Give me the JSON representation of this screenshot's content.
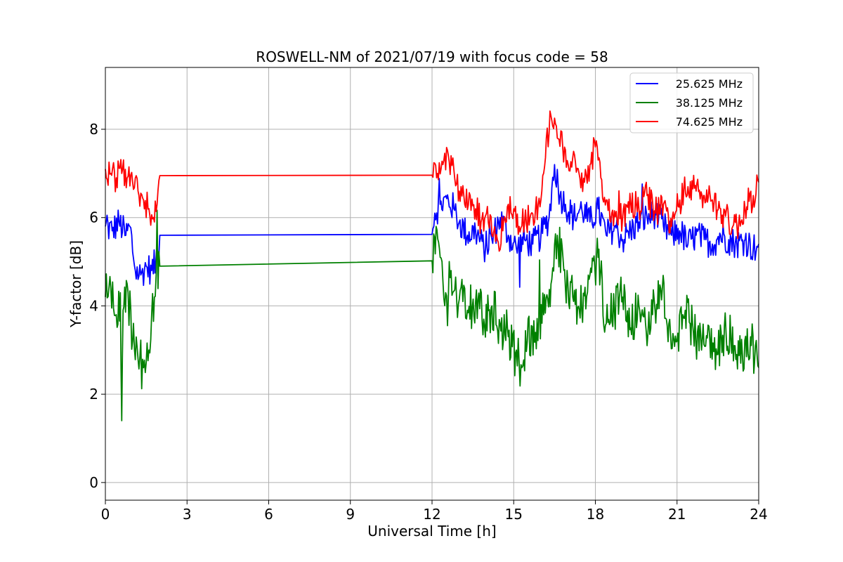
{
  "chart_data": {
    "type": "line",
    "title": "ROSWELL-NM of 2021/07/19 with focus code = 58",
    "xlabel": "Universal Time [h]",
    "ylabel": "Y-factor [dB]",
    "xlim": [
      0,
      24
    ],
    "ylim": [
      -0.4,
      9.4
    ],
    "xticks": [
      0,
      3,
      6,
      9,
      12,
      15,
      18,
      21,
      24
    ],
    "yticks": [
      0,
      2,
      4,
      6,
      8
    ],
    "grid": true,
    "legend_position": "top-right",
    "series": [
      {
        "name": "25.625 MHz",
        "color": "#0000ff",
        "x": [
          0,
          0.25,
          0.5,
          0.75,
          0.9,
          1.1,
          1.3,
          1.5,
          1.7,
          1.85,
          2.0,
          12.0,
          12.1,
          12.3,
          12.6,
          12.8,
          13.0,
          13.3,
          13.6,
          13.9,
          14.2,
          14.5,
          14.8,
          15.1,
          15.4,
          15.7,
          16.0,
          16.3,
          16.5,
          16.7,
          16.9,
          17.2,
          17.5,
          17.8,
          18.1,
          18.4,
          18.7,
          19.0,
          19.3,
          19.6,
          19.9,
          20.2,
          20.5,
          20.8,
          21.1,
          21.4,
          21.7,
          22.0,
          22.3,
          22.6,
          22.9,
          23.2,
          23.5,
          23.8,
          24.0
        ],
        "y": [
          5.8,
          5.7,
          5.9,
          5.6,
          5.8,
          4.8,
          4.7,
          4.9,
          4.8,
          5.0,
          5.6,
          5.62,
          6.1,
          6.3,
          6.4,
          6.2,
          5.9,
          5.6,
          5.7,
          5.3,
          5.5,
          6.0,
          5.6,
          5.3,
          5.5,
          5.4,
          5.6,
          6.0,
          7.2,
          6.5,
          6.3,
          6.0,
          6.2,
          5.9,
          6.2,
          5.6,
          5.8,
          5.5,
          5.7,
          5.9,
          6.0,
          6.1,
          5.8,
          5.6,
          5.7,
          5.4,
          5.6,
          5.5,
          5.4,
          5.6,
          5.5,
          5.4,
          5.5,
          5.3,
          5.4
        ]
      },
      {
        "name": "38.125 MHz",
        "color": "#008000",
        "x": [
          0,
          0.2,
          0.4,
          0.55,
          0.6,
          0.65,
          0.8,
          1.0,
          1.2,
          1.4,
          1.6,
          1.8,
          2.0,
          12.0,
          12.15,
          12.3,
          12.5,
          12.7,
          12.9,
          13.1,
          13.3,
          13.6,
          13.9,
          14.2,
          14.5,
          14.8,
          15.1,
          15.3,
          15.5,
          15.8,
          16.1,
          16.4,
          16.6,
          16.9,
          17.2,
          17.5,
          17.8,
          18.1,
          18.4,
          18.7,
          19.0,
          19.3,
          19.6,
          19.9,
          20.1,
          20.4,
          20.7,
          21.0,
          21.3,
          21.6,
          21.9,
          22.2,
          22.5,
          22.8,
          23.1,
          23.4,
          23.7,
          24.0
        ],
        "y": [
          4.2,
          4.4,
          3.8,
          4.3,
          1.4,
          3.9,
          4.5,
          3.2,
          2.8,
          2.6,
          3.0,
          4.2,
          4.9,
          5.02,
          5.8,
          5.1,
          4.3,
          4.8,
          4.2,
          4.6,
          3.9,
          4.1,
          3.7,
          4.0,
          3.6,
          3.3,
          3.0,
          2.6,
          3.2,
          3.4,
          3.8,
          4.6,
          5.6,
          4.4,
          4.1,
          3.9,
          4.7,
          5.1,
          3.6,
          3.9,
          4.2,
          3.5,
          4.0,
          3.1,
          3.8,
          4.4,
          3.6,
          3.2,
          3.9,
          3.4,
          3.0,
          3.3,
          2.9,
          3.4,
          3.1,
          2.9,
          3.3,
          2.6
        ]
      },
      {
        "name": "74.625 MHz",
        "color": "#ff0000",
        "x": [
          0,
          0.2,
          0.4,
          0.6,
          0.8,
          1.0,
          1.2,
          1.4,
          1.6,
          1.8,
          1.9,
          2.0,
          12.0,
          12.2,
          12.4,
          12.6,
          12.8,
          13.0,
          13.2,
          13.4,
          13.6,
          13.8,
          14.0,
          14.2,
          14.4,
          14.6,
          14.8,
          15.0,
          15.2,
          15.4,
          15.6,
          15.8,
          16.0,
          16.2,
          16.4,
          16.6,
          16.8,
          17.0,
          17.2,
          17.4,
          17.6,
          17.8,
          18.0,
          18.2,
          18.4,
          18.6,
          18.8,
          19.0,
          19.3,
          19.6,
          19.9,
          20.2,
          20.5,
          20.8,
          21.1,
          21.4,
          21.7,
          22.0,
          22.3,
          22.6,
          22.9,
          23.2,
          23.5,
          23.8,
          24.0
        ],
        "y": [
          7.1,
          7.0,
          6.9,
          7.0,
          6.9,
          6.8,
          6.6,
          6.4,
          6.2,
          5.9,
          6.3,
          6.95,
          6.96,
          7.0,
          7.2,
          7.4,
          7.1,
          6.6,
          6.3,
          6.5,
          6.2,
          5.9,
          6.1,
          5.6,
          5.5,
          5.7,
          6.3,
          6.2,
          5.8,
          5.9,
          6.0,
          6.2,
          6.4,
          7.8,
          8.2,
          7.8,
          7.6,
          7.2,
          7.5,
          7.0,
          6.8,
          7.2,
          7.6,
          6.9,
          6.4,
          6.1,
          5.9,
          6.0,
          6.3,
          6.2,
          6.5,
          6.1,
          6.3,
          5.8,
          6.4,
          6.7,
          6.6,
          6.5,
          6.4,
          6.2,
          5.9,
          5.8,
          6.2,
          6.5,
          6.8
        ]
      }
    ]
  }
}
